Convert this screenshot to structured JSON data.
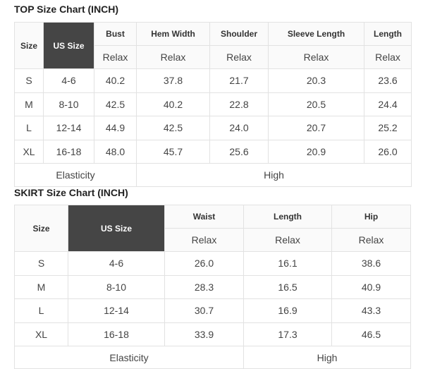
{
  "top": {
    "title": "TOP Size Chart (INCH)",
    "size_label": "Size",
    "us_size_label": "US Size",
    "columns": [
      "Bust",
      "Hem Width",
      "Shoulder",
      "Sleeve Length",
      "Length"
    ],
    "sub": "Relax",
    "rows": [
      [
        "S",
        "4-6",
        "40.2",
        "37.8",
        "21.7",
        "20.3",
        "23.6"
      ],
      [
        "M",
        "8-10",
        "42.5",
        "40.2",
        "22.8",
        "20.5",
        "24.4"
      ],
      [
        "L",
        "12-14",
        "44.9",
        "42.5",
        "24.0",
        "20.7",
        "25.2"
      ],
      [
        "XL",
        "16-18",
        "48.0",
        "45.7",
        "25.6",
        "20.9",
        "26.0"
      ]
    ],
    "elasticity_label": "Elasticity",
    "elasticity_value": "High"
  },
  "skirt": {
    "title": "SKIRT Size Chart (INCH)",
    "size_label": "Size",
    "us_size_label": "US Size",
    "columns": [
      "Waist",
      "Length",
      "Hip"
    ],
    "sub": "Relax",
    "rows": [
      [
        "S",
        "4-6",
        "26.0",
        "16.1",
        "38.6"
      ],
      [
        "M",
        "8-10",
        "28.3",
        "16.5",
        "40.9"
      ],
      [
        "L",
        "12-14",
        "30.7",
        "16.9",
        "43.3"
      ],
      [
        "XL",
        "16-18",
        "33.9",
        "17.3",
        "46.5"
      ]
    ],
    "elasticity_label": "Elasticity",
    "elasticity_value": "High"
  }
}
